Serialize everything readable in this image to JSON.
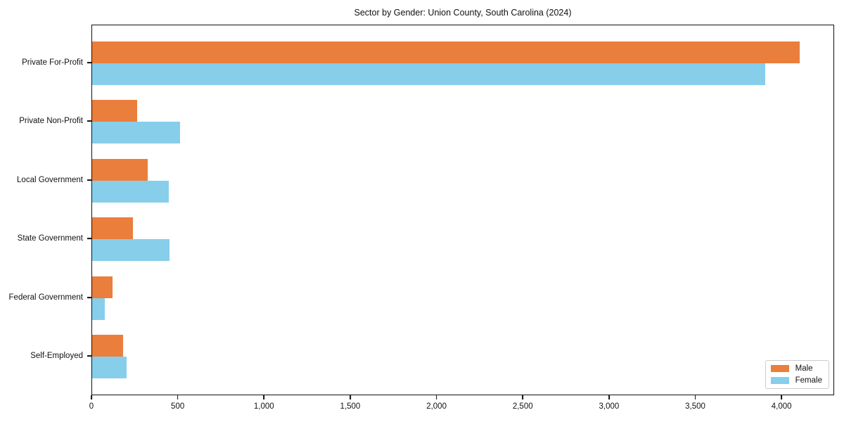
{
  "figure": {
    "title": "Sector by Gender: Union County, South Carolina (2024)"
  },
  "chart_data": {
    "type": "bar",
    "orientation": "horizontal",
    "title": "Sector by Gender: Union County, South Carolina (2024)",
    "categories": [
      "Private For-Profit",
      "Private Non-Profit",
      "Local Government",
      "State Government",
      "Federal Government",
      "Self-Employed"
    ],
    "series": [
      {
        "name": "Male",
        "color": "#ea7e3c",
        "values": [
          4100,
          260,
          320,
          235,
          120,
          180
        ]
      },
      {
        "name": "Female",
        "color": "#87ceeb",
        "values": [
          3900,
          510,
          445,
          450,
          75,
          200
        ]
      }
    ],
    "xlabel": "",
    "ylabel": "",
    "xlim": [
      0,
      4305
    ],
    "xticks": [
      0,
      500,
      1000,
      1500,
      2000,
      2500,
      3000,
      3500,
      4000
    ],
    "xtick_labels": [
      "0",
      "500",
      "1,000",
      "1,500",
      "2,000",
      "2,500",
      "3,000",
      "3,500",
      "4,000"
    ],
    "grid": false,
    "legend_position": "lower right",
    "background_color": "#ffffff",
    "spine_color": "#111111"
  }
}
